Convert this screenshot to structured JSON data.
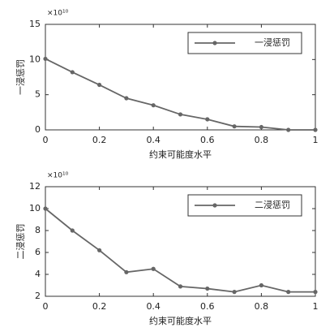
{
  "chart_data": [
    {
      "type": "line",
      "y_label": "一浸惩罚",
      "x_label": "约束可能度水平",
      "exponent_label": "×10¹⁰",
      "x": [
        0,
        0.1,
        0.2,
        0.3,
        0.4,
        0.5,
        0.6,
        0.7,
        0.8,
        0.9,
        1
      ],
      "series": [
        {
          "name": "一浸惩罚",
          "color": "#666666",
          "values": [
            10.1,
            8.2,
            6.4,
            4.5,
            3.5,
            2.2,
            1.5,
            0.5,
            0.4,
            0,
            0
          ]
        }
      ],
      "xlim": [
        0,
        1
      ],
      "xticks": [
        0,
        0.2,
        0.4,
        0.6,
        0.8,
        1
      ],
      "ylim": [
        0,
        15
      ],
      "yticks": [
        0,
        5,
        10,
        15
      ],
      "legend": "upper right"
    },
    {
      "type": "line",
      "y_label": "二浸惩罚",
      "x_label": "约束可能度水平",
      "exponent_label": "×10¹⁰",
      "x": [
        0,
        0.1,
        0.2,
        0.3,
        0.4,
        0.5,
        0.6,
        0.7,
        0.8,
        0.9,
        1
      ],
      "series": [
        {
          "name": "二浸惩罚",
          "color": "#666666",
          "values": [
            10,
            8,
            6.2,
            4.2,
            4.5,
            2.9,
            2.7,
            2.4,
            3.0,
            2.4,
            2.4
          ]
        }
      ],
      "xlim": [
        0,
        1
      ],
      "xticks": [
        0,
        0.2,
        0.4,
        0.6,
        0.8,
        1
      ],
      "ylim": [
        2,
        12
      ],
      "yticks": [
        2,
        4,
        6,
        8,
        10,
        12
      ],
      "legend": "upper right"
    }
  ]
}
